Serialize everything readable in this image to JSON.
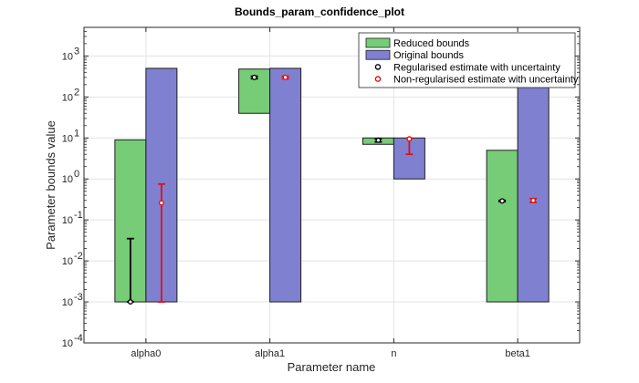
{
  "chart_data": {
    "type": "bar",
    "title": "Bounds_param_confidence_plot",
    "xlabel": "Parameter name",
    "ylabel": "Parameter bounds value",
    "categories": [
      "alpha0",
      "alpha1",
      "n",
      "beta1"
    ],
    "yscale": "log",
    "ylim": [
      0.0001,
      5000
    ],
    "yticks": [
      {
        "value": 0.0001,
        "base": "10",
        "exp": "-4"
      },
      {
        "value": 0.001,
        "base": "10",
        "exp": "-3"
      },
      {
        "value": 0.01,
        "base": "10",
        "exp": "-2"
      },
      {
        "value": 0.1,
        "base": "10",
        "exp": "-1"
      },
      {
        "value": 1,
        "base": "10",
        "exp": "0"
      },
      {
        "value": 10,
        "base": "10",
        "exp": "1"
      },
      {
        "value": 100,
        "base": "10",
        "exp": "2"
      },
      {
        "value": 1000,
        "base": "10",
        "exp": "3"
      }
    ],
    "grid": true,
    "legend_position": "top-right",
    "series": [
      {
        "name": "Reduced bounds",
        "kind": "range-bar",
        "color": "#77cc77",
        "ranges": [
          [
            0.001,
            9
          ],
          [
            40,
            480
          ],
          [
            7,
            10
          ],
          [
            0.001,
            5
          ]
        ]
      },
      {
        "name": "Original bounds",
        "kind": "range-bar",
        "color": "#8080d0",
        "ranges": [
          [
            0.001,
            500
          ],
          [
            0.001,
            500
          ],
          [
            1,
            10
          ],
          [
            0.001,
            500
          ]
        ]
      },
      {
        "name": "Regularised estimate with uncertainty",
        "kind": "errorbar",
        "color": "#000000",
        "points": [
          {
            "value": 0.001,
            "low": 0.001,
            "high": 0.035
          },
          {
            "value": 300,
            "low": 280,
            "high": 320
          },
          {
            "value": 8.8,
            "low": 8,
            "high": 9.5
          },
          {
            "value": 0.29,
            "low": 0.28,
            "high": 0.3
          }
        ]
      },
      {
        "name": "Non-regularised estimate with uncertainty",
        "kind": "errorbar",
        "color": "#e01010",
        "points": [
          {
            "value": 0.26,
            "low": 0.001,
            "high": 0.75
          },
          {
            "value": 300,
            "low": 280,
            "high": 320
          },
          {
            "value": 9.5,
            "low": 4,
            "high": 9.9
          },
          {
            "value": 0.3,
            "low": 0.27,
            "high": 0.33
          }
        ]
      }
    ]
  }
}
